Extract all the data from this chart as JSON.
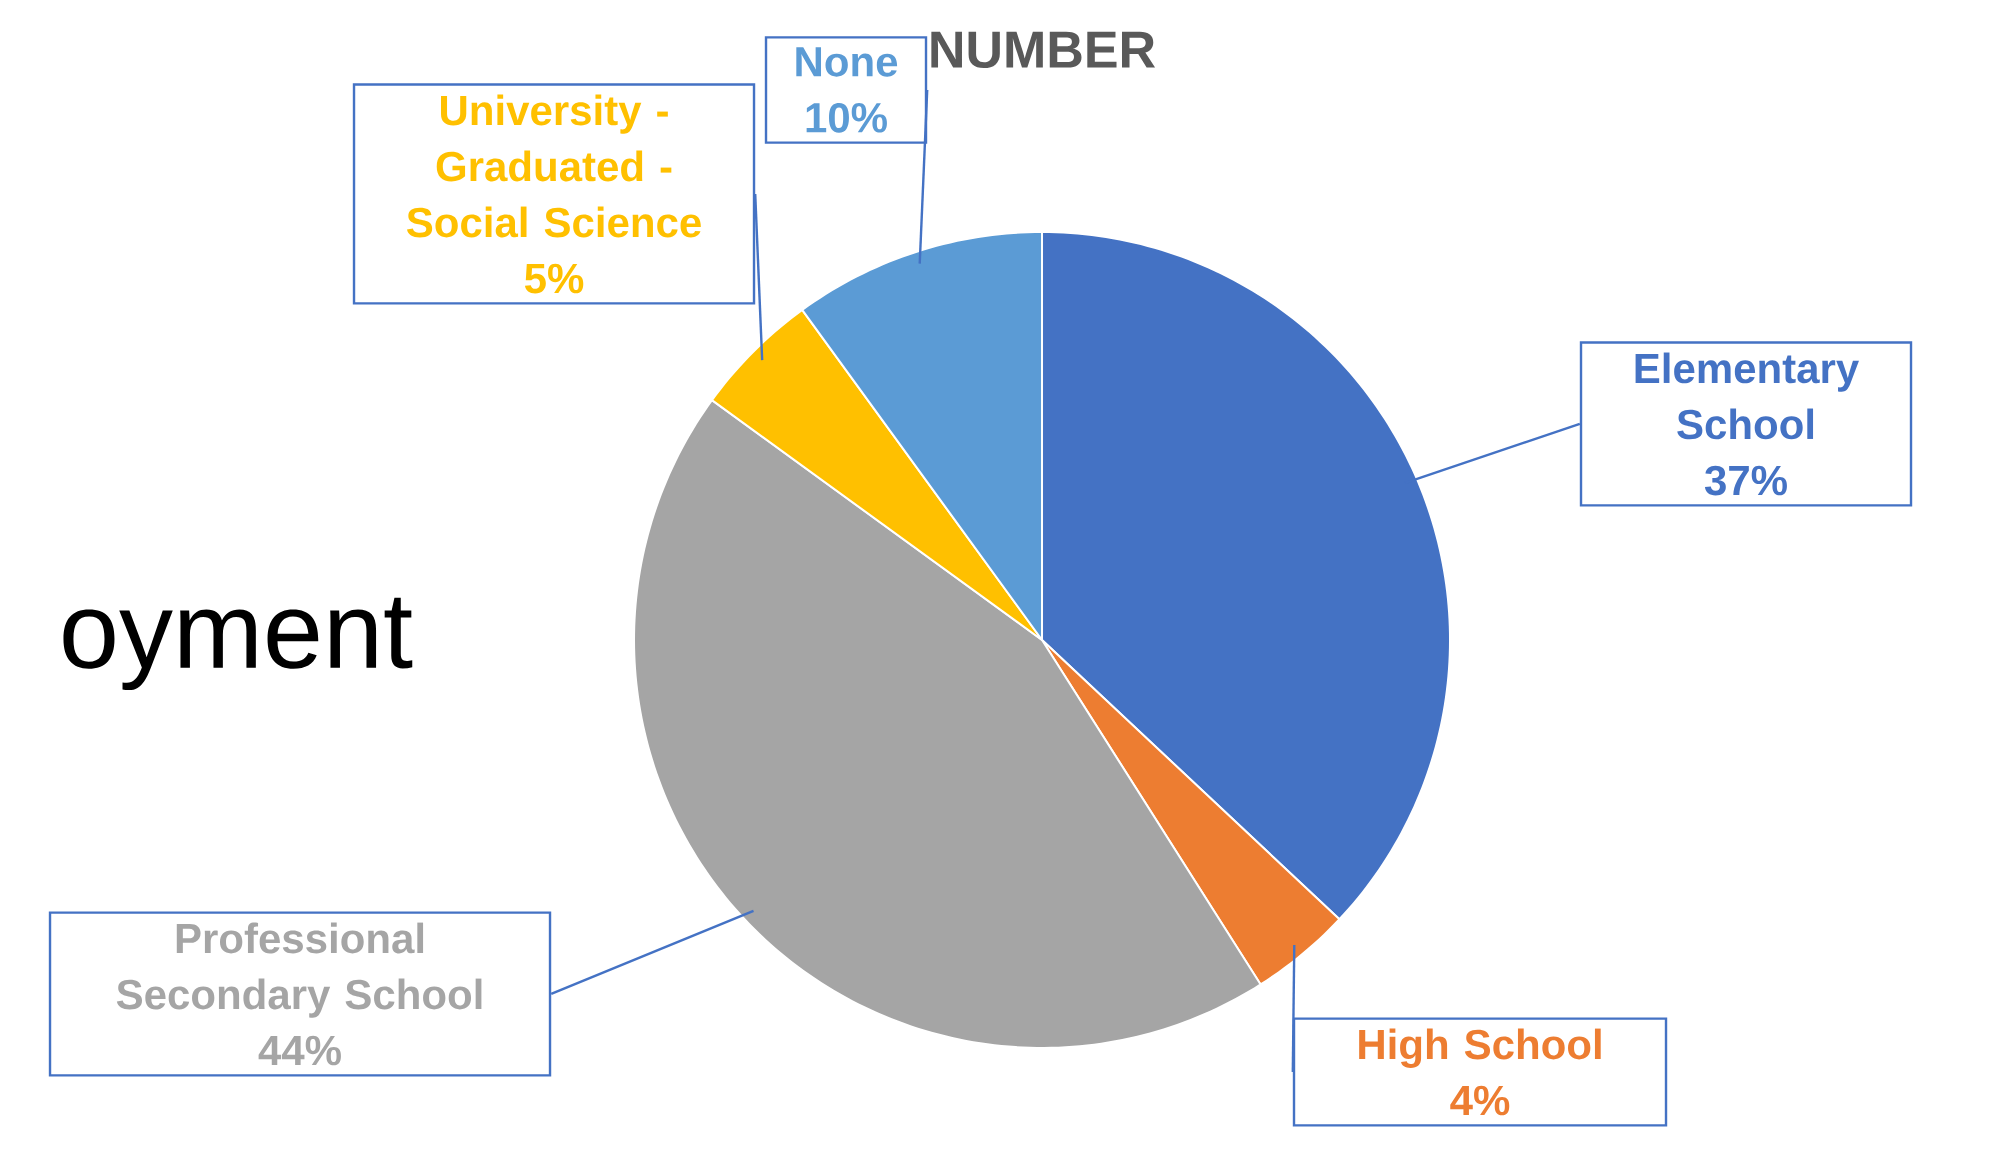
{
  "chart_data": {
    "type": "pie",
    "title": "NUMBER",
    "categories": [
      "Elementary School",
      "High School",
      "Professional Secondary School",
      "University - Graduated - Social Science",
      "None"
    ],
    "values": [
      37,
      4,
      44,
      5,
      10
    ],
    "value_labels": [
      "37%",
      "4%",
      "44%",
      "5%",
      "10%"
    ],
    "colors": [
      "#4472c4",
      "#ed7d31",
      "#a5a5a5",
      "#ffc000",
      "#5b9bd5"
    ],
    "annotations": [
      "oyment"
    ]
  }
}
